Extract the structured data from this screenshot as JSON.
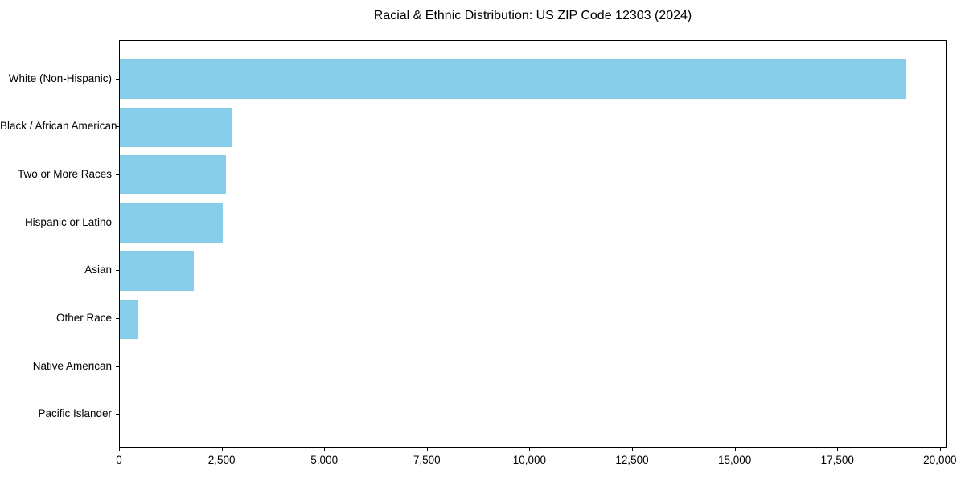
{
  "title": "Racial & Ethnic Distribution: US ZIP Code 12303 (2024)",
  "colors": {
    "bar": "#87CEEB",
    "axis": "#000000",
    "text": "#000000",
    "background": "#FFFFFF"
  },
  "chart_data": {
    "type": "bar",
    "orientation": "horizontal",
    "title": "Racial & Ethnic Distribution: US ZIP Code 12303 (2024)",
    "categories": [
      "White (Non-Hispanic)",
      "Black / African American",
      "Two or More Races",
      "Hispanic or Latino",
      "Asian",
      "Other Race",
      "Native American",
      "Pacific Islander"
    ],
    "values": [
      19200,
      2740,
      2590,
      2510,
      1800,
      450,
      0,
      0
    ],
    "bar_color": "#87CEEB",
    "xlabel": "",
    "ylabel": "",
    "xlim": [
      0,
      20160
    ],
    "xticks": [
      0,
      2500,
      5000,
      7500,
      10000,
      12500,
      15000,
      17500,
      20000
    ],
    "xtick_labels": [
      "0",
      "2,500",
      "5,000",
      "7,500",
      "10,000",
      "12,500",
      "15,000",
      "17,500",
      "20,000"
    ],
    "grid": false,
    "legend": null
  }
}
